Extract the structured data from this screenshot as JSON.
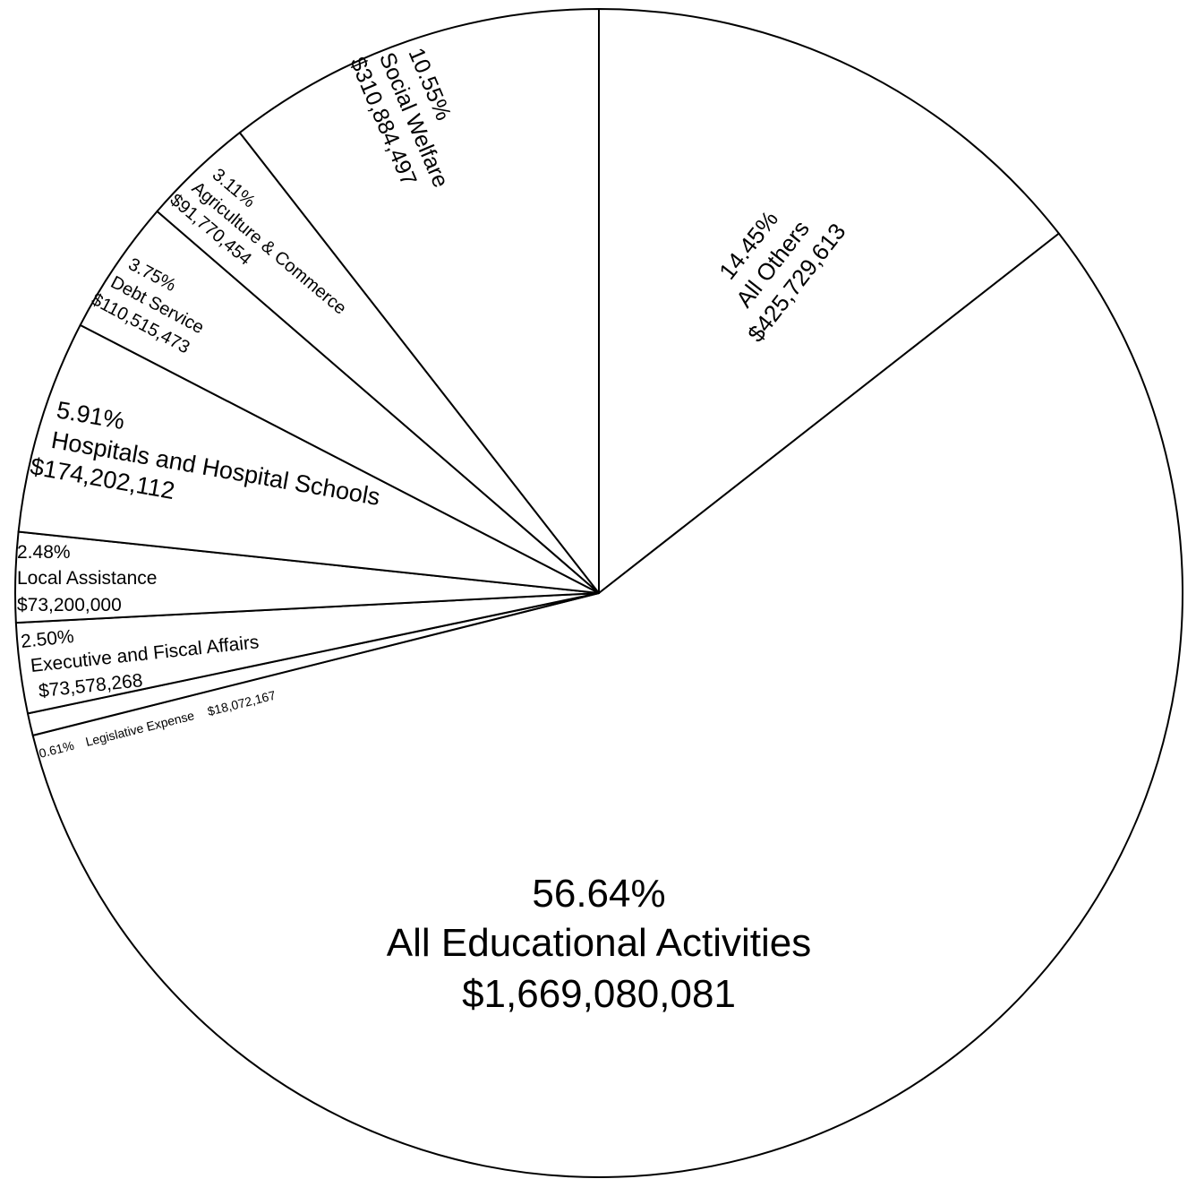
{
  "chart_data": {
    "type": "pie",
    "title": "",
    "start_angle_deg": 0,
    "direction": "clockwise",
    "slices": [
      {
        "name": "All Others",
        "percent_label": "14.45%",
        "amount_label": "$425,729,613",
        "value": 425729613,
        "percent": 14.45
      },
      {
        "name": "All Educational Activities",
        "percent_label": "56.64%",
        "amount_label": "$1,669,080,081",
        "value": 1669080081,
        "percent": 56.64
      },
      {
        "name": "Legislative Expense",
        "percent_label": "0.61%",
        "amount_label": "$18,072,167",
        "value": 18072167,
        "percent": 0.61
      },
      {
        "name": "Executive and Fiscal  Affairs",
        "percent_label": "2.50%",
        "amount_label": "$73,578,268",
        "value": 73578268,
        "percent": 2.5
      },
      {
        "name": "Local Assistance",
        "percent_label": "2.48%",
        "amount_label": "$73,200,000",
        "value": 73200000,
        "percent": 2.48
      },
      {
        "name": "Hospitals and Hospital Schools",
        "percent_label": "5.91%",
        "amount_label": "$174,202,112",
        "value": 174202112,
        "percent": 5.91
      },
      {
        "name": "Debt Service",
        "percent_label": "3.75%",
        "amount_label": "$110,515,473",
        "value": 110515473,
        "percent": 3.75
      },
      {
        "name": "Agriculture & Commerce",
        "percent_label": "3.11%",
        "amount_label": "$91,770,454",
        "value": 91770454,
        "percent": 3.11
      },
      {
        "name": "Social Welfare",
        "percent_label": "10.55%",
        "amount_label": "$310,884,497",
        "value": 310884497,
        "percent": 10.55
      }
    ],
    "colors": {
      "slice_fill": "#ffffff",
      "stroke": "#000000",
      "text": "#000000"
    }
  }
}
